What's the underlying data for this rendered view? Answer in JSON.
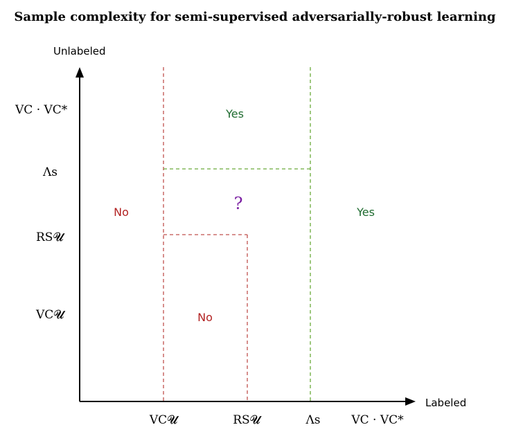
{
  "title": "Sample complexity for semi-supervised adversarially-robust learning",
  "axes": {
    "y_label": "Unlabeled",
    "x_label": "Labeled"
  },
  "y_ticks": {
    "vc_vcstar": "VC · VC*",
    "lambda_s": "Λs",
    "rs_u": "RS𝓤",
    "vc_u": "VC𝓤"
  },
  "x_ticks": {
    "vc_u": "VC𝓤",
    "rs_u": "RS𝓤",
    "lambda_s": "Λs",
    "vc_vcstar": "VC · VC*"
  },
  "regions": {
    "yes_top": "Yes",
    "question": "?",
    "yes_right": "Yes",
    "no_left": "No",
    "no_box": "No"
  },
  "colors": {
    "red": "#b22222",
    "green": "#1e6b2f",
    "purple": "#7b1fa2",
    "red_dash": "#c0504d",
    "green_dash": "#6aaa3a"
  }
}
